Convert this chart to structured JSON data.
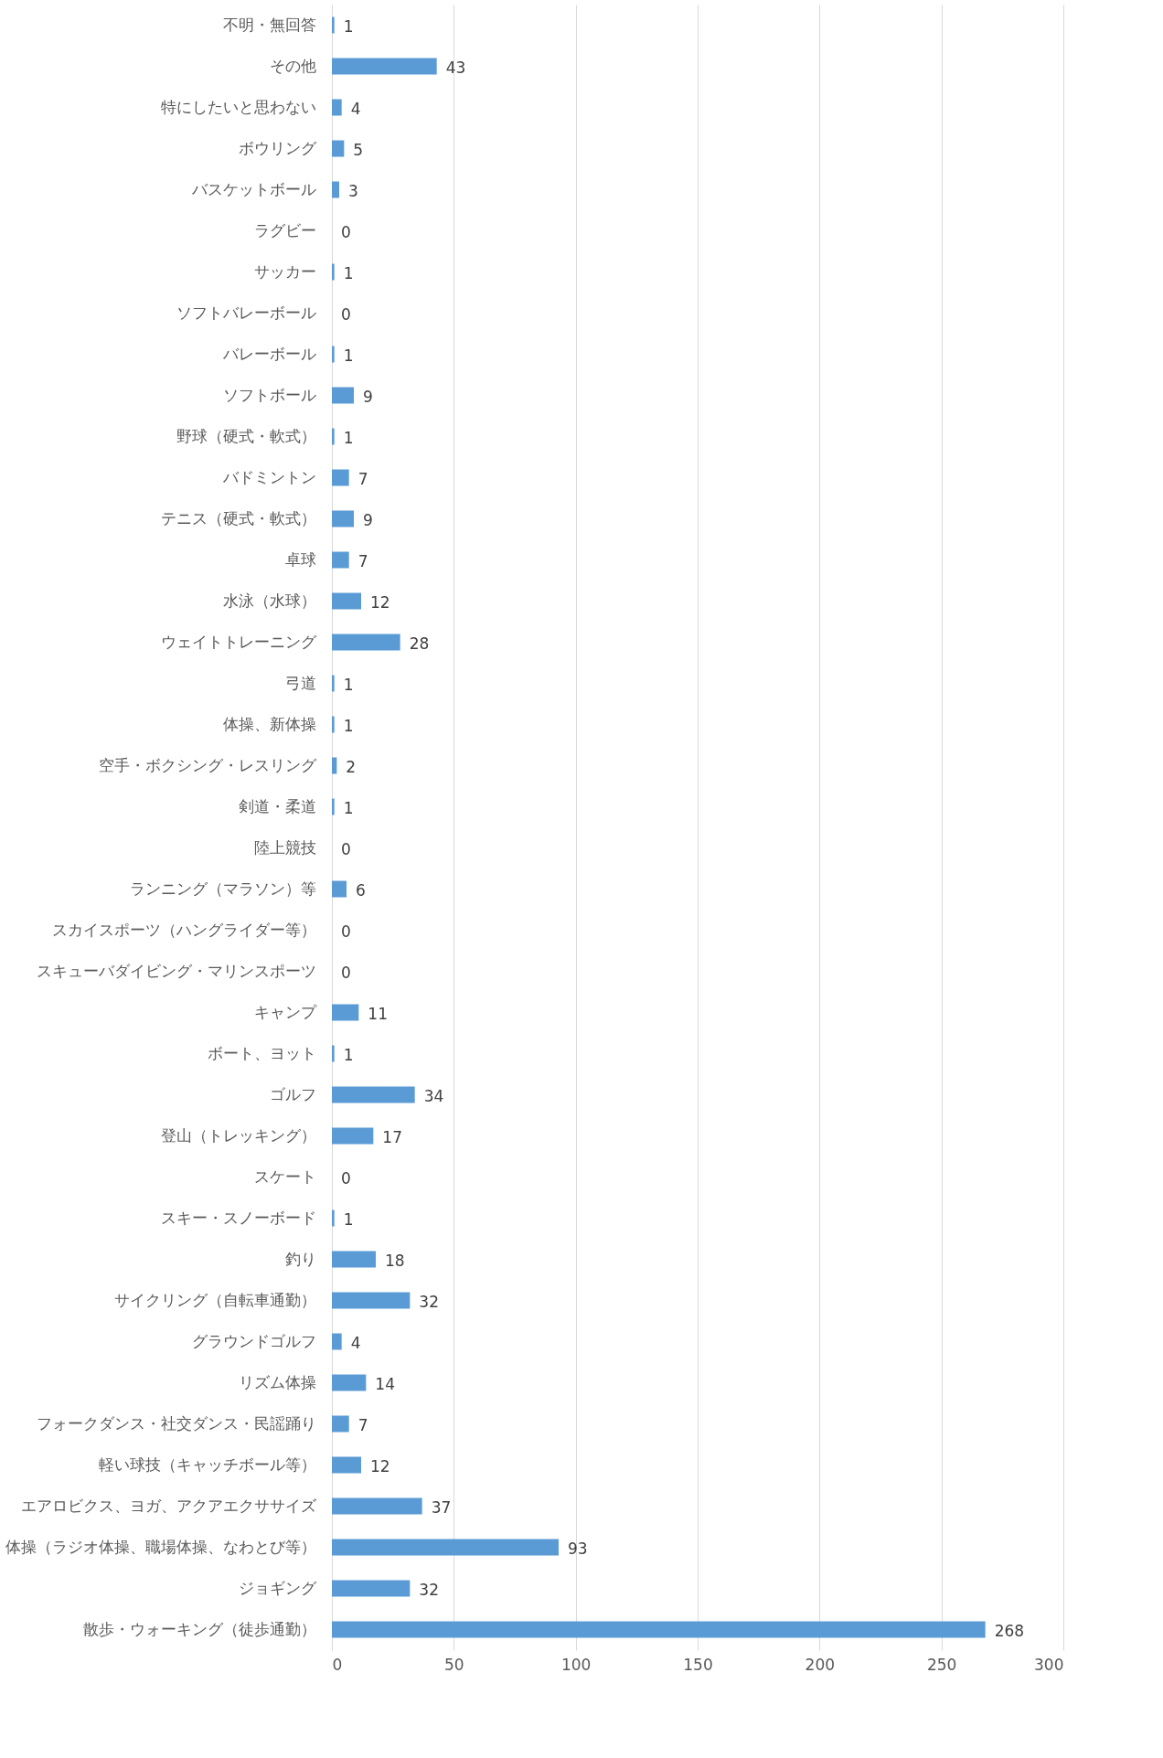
{
  "chart_data": {
    "type": "bar",
    "orientation": "horizontal",
    "categories": [
      "不明・無回答",
      "その他",
      "特にしたいと思わない",
      "ボウリング",
      "バスケットボール",
      "ラグビー",
      "サッカー",
      "ソフトバレーボール",
      "バレーボール",
      "ソフトボール",
      "野球（硬式・軟式）",
      "バドミントン",
      "テニス（硬式・軟式）",
      "卓球",
      "水泳（水球）",
      "ウェイトトレーニング",
      "弓道",
      "体操、新体操",
      "空手・ボクシング・レスリング",
      "剣道・柔道",
      "陸上競技",
      "ランニング（マラソン）等",
      "スカイスポーツ（ハングライダー等）",
      "スキューバダイビング・マリンスポーツ",
      "キャンプ",
      "ボート、ヨット",
      "ゴルフ",
      "登山（トレッキング）",
      "スケート",
      "スキー・スノーボード",
      "釣り",
      "サイクリング（自転車通勤）",
      "グラウンドゴルフ",
      "リズム体操",
      "フォークダンス・社交ダンス・民謡踊り",
      "軽い球技（キャッチボール等）",
      "エアロビクス、ヨガ、アクアエクササイズ",
      "体操（ラジオ体操、職場体操、なわとび等）",
      "ジョギング",
      "散歩・ウォーキング（徒歩通勤）"
    ],
    "values": [
      1,
      43,
      4,
      5,
      3,
      0,
      1,
      0,
      1,
      9,
      1,
      7,
      9,
      7,
      12,
      28,
      1,
      1,
      2,
      1,
      0,
      6,
      0,
      0,
      11,
      1,
      34,
      17,
      0,
      1,
      18,
      32,
      4,
      14,
      7,
      12,
      37,
      93,
      32,
      268
    ],
    "color": "#5b9bd5",
    "xlim": [
      0,
      300
    ],
    "xticks": [
      0,
      50,
      100,
      150,
      200,
      250,
      300
    ],
    "grid": "x",
    "data_labels": true
  }
}
